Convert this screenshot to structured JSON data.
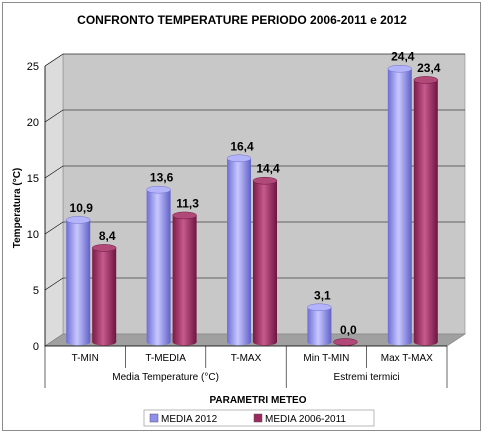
{
  "chart_data": {
    "type": "bar",
    "title": "CONFRONTO TEMPERATURE PERIODO 2006-2011  e 2012",
    "ylabel": "Temperatura (°C)",
    "xlabel": "PARAMETRI METEO",
    "ylim": [
      0,
      25
    ],
    "yticks": [
      0,
      5,
      10,
      15,
      20,
      25
    ],
    "grid": true,
    "legend_position": "bottom",
    "categories": [
      "T-MIN",
      "T-MEDIA",
      "T-MAX",
      "Min T-MIN",
      "Max T-MAX"
    ],
    "groups": [
      {
        "label": "Media Temperature (°C)",
        "categories": [
          "T-MIN",
          "T-MEDIA",
          "T-MAX"
        ]
      },
      {
        "label": "Estremi termici",
        "categories": [
          "Min T-MIN",
          "Max T-MAX"
        ]
      }
    ],
    "series": [
      {
        "name": "MEDIA 2012",
        "values": [
          10.9,
          13.6,
          16.4,
          3.1,
          24.4
        ],
        "labels": [
          "10,9",
          "13,6",
          "16,4",
          "3,1",
          "24,4"
        ],
        "color": "#8f8fef"
      },
      {
        "name": "MEDIA 2006-2011",
        "values": [
          8.4,
          11.3,
          14.4,
          0.0,
          23.4
        ],
        "labels": [
          "8,4",
          "11,3",
          "14,4",
          "0,0",
          "23,4"
        ],
        "color": "#9c2a5e"
      }
    ],
    "colors": {
      "wall": "#c8c8c8",
      "wall_top": "#dcdcdc",
      "floor": "#a0a0a0"
    }
  }
}
